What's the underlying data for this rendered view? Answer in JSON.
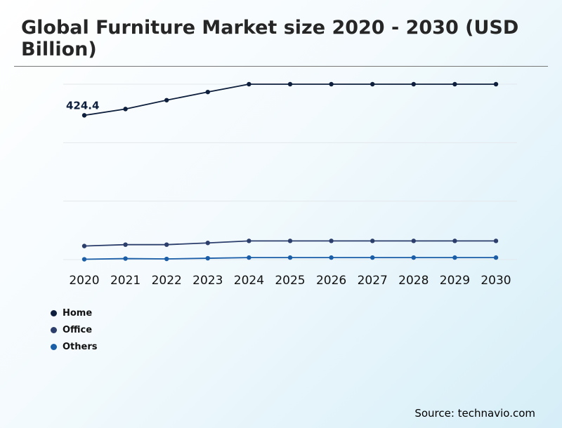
{
  "title": "Global Furniture Market size 2020 - 2030 (USD Billion)",
  "source": "Source: technavio.com",
  "chart_data": {
    "type": "line",
    "x": [
      "2020",
      "2021",
      "2022",
      "2023",
      "2024",
      "2025",
      "2026",
      "2027",
      "2028",
      "2029",
      "2030"
    ],
    "ylim": [
      0,
      600
    ],
    "grid": true,
    "legend_position": "bottom-left",
    "series": [
      {
        "name": "Home",
        "color": "#0d1f3c",
        "values": [
          424.4,
          443,
          469,
          493,
          516,
          516,
          516,
          516,
          516,
          516,
          516
        ]
      },
      {
        "name": "Office",
        "color": "#2c3e6b",
        "values": [
          40,
          44,
          44,
          49,
          55,
          55,
          55,
          55,
          55,
          55,
          55
        ]
      },
      {
        "name": "Others",
        "color": "#1a5ea8",
        "values": [
          1,
          3,
          2,
          4,
          6,
          6,
          6,
          6,
          6,
          6,
          6
        ]
      }
    ],
    "annotations": [
      {
        "series": "Home",
        "x": "2020",
        "text": "424.4"
      }
    ]
  }
}
